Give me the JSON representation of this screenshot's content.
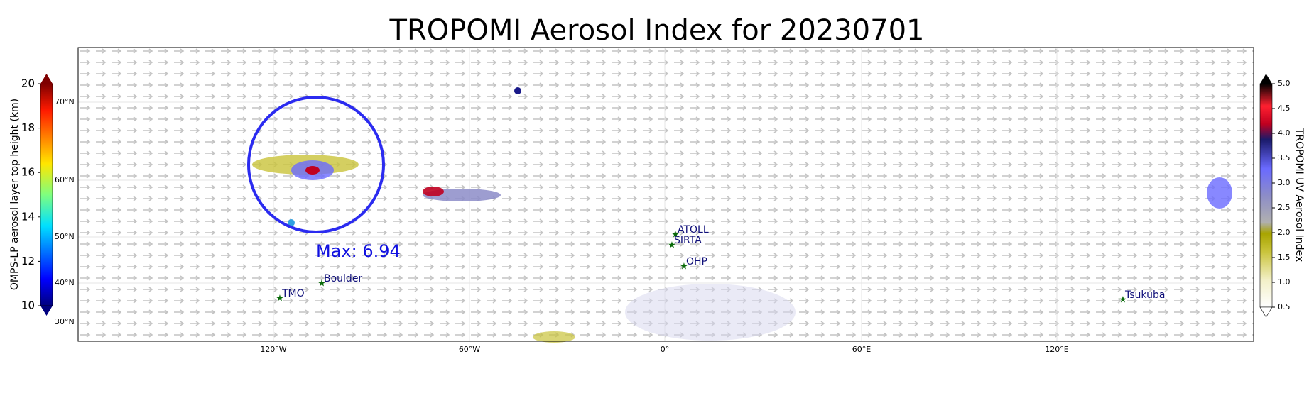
{
  "title": "TROPOMI Aerosol Index for 20230701",
  "left_colorbar": {
    "label": "OMPS-LP aerosol layer top height (km)",
    "ticks": [
      10,
      12,
      14,
      16,
      18,
      20
    ]
  },
  "latitude_labels": [
    "70°N",
    "60°N",
    "50°N",
    "40°N",
    "30°N"
  ],
  "longitude_labels": [
    "120°W",
    "60°W",
    "0°",
    "60°E",
    "120°E"
  ],
  "right_colorbar": {
    "label": "TROPOMI UV Aerosol Index",
    "ticks": [
      0.5,
      {
        "value": 1,
        "label": "1.0"
      },
      1.5,
      {
        "value": 2,
        "label": "2.0"
      },
      2.5,
      {
        "value": 3,
        "label": "3.0"
      },
      3.5,
      {
        "value": 4,
        "label": "4.0"
      },
      4.5,
      {
        "value": 5,
        "label": "5.0"
      }
    ]
  },
  "annotation": "Max: 6.94",
  "stations": [
    "TMO",
    "Boulder",
    "ATOLL",
    "SIRTA",
    "OHP",
    "Tsukuba"
  ]
}
